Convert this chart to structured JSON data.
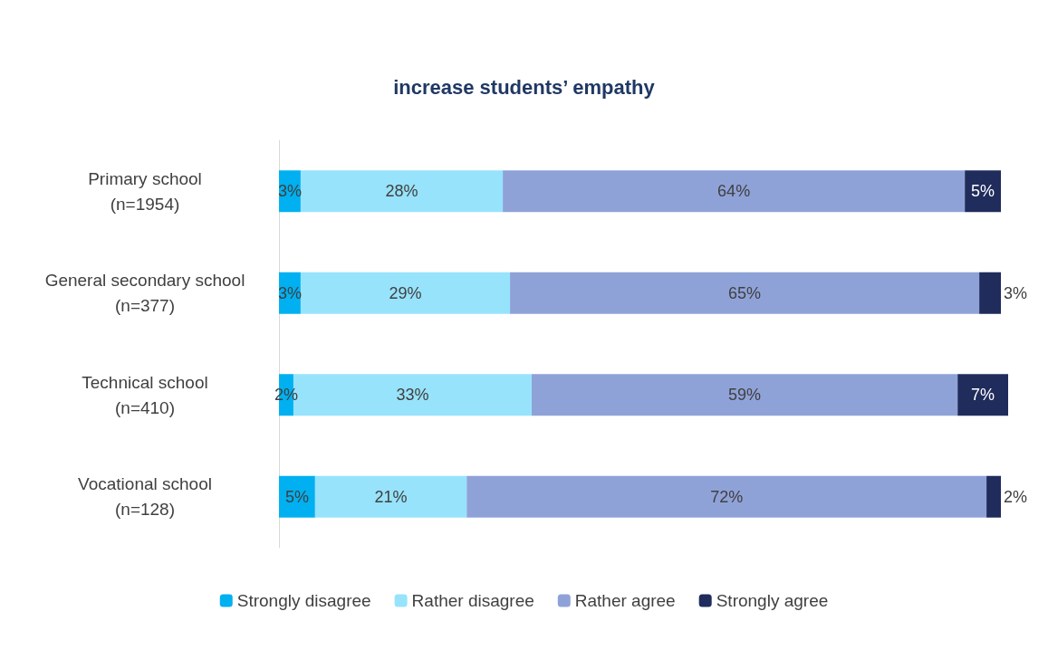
{
  "chart_data": {
    "type": "bar",
    "title": "increase students’ empathy",
    "orientation": "horizontal",
    "stacked": true,
    "legend": "bottom",
    "categories": [
      "Primary school\n(n=1954)",
      "General secondary school\n(n=377)",
      "Technical school\n(n=410)",
      "Vocational school\n(n=128)"
    ],
    "series": [
      {
        "name": "Strongly disagree",
        "color": "#00b0f0",
        "values": [
          3,
          3,
          2,
          5
        ],
        "value_labels": [
          "3%",
          "3%",
          "2%",
          "5%"
        ]
      },
      {
        "name": "Rather disagree",
        "color": "#97e3fc",
        "values": [
          28,
          29,
          33,
          21
        ],
        "value_labels": [
          "28%",
          "29%",
          "33%",
          "21%"
        ]
      },
      {
        "name": "Rather agree",
        "color": "#8fa2d8",
        "values": [
          64,
          65,
          59,
          72
        ],
        "value_labels": [
          "64%",
          "65%",
          "59%",
          "72%"
        ]
      },
      {
        "name": "Strongly agree",
        "color": "#1f2c5c",
        "values": [
          5,
          3,
          7,
          2
        ],
        "value_labels": [
          "5%",
          "3%",
          "7%",
          "2%"
        ]
      }
    ]
  }
}
